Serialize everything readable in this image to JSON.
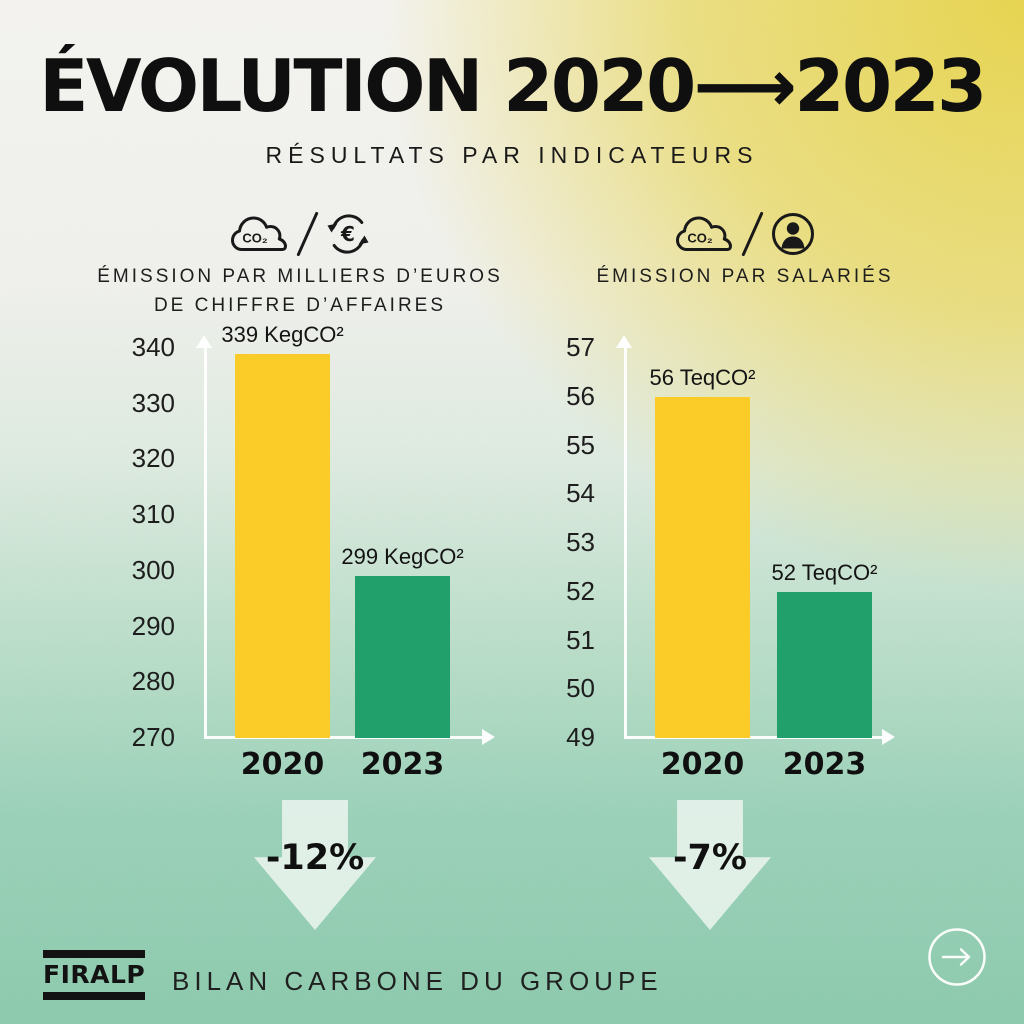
{
  "page": {
    "title": "ÉVOLUTION 2020⟶2023",
    "subtitle": "RÉSULTATS PAR INDICATEURS"
  },
  "footer": {
    "logo_text": "FIRALP",
    "caption": "BILAN CARBONE DU GROUPE"
  },
  "colors": {
    "bar_2020_yellow": "#FBCC27",
    "bar_2023_green": "#21A06C",
    "axis_white": "#FFFFFF",
    "text_black": "#141414",
    "arrow_shape_mint": "#E5F2EA",
    "bg_top_right_yellow": "#E5D248",
    "bg_bottom_teal": "#8AC8AB",
    "bg_top_left_light": "#F3F2EE"
  },
  "chart_data": [
    {
      "type": "bar",
      "title_lines": [
        "ÉMISSION PAR MILLIERS D’EUROS",
        "DE CHIFFRE D’AFFAIRES"
      ],
      "icons": [
        "co2-cloud",
        "euro-cycle"
      ],
      "categories": [
        "2020",
        "2023"
      ],
      "values": [
        339,
        299
      ],
      "bar_labels": [
        "339 KegCO²",
        "299 KegCO²"
      ],
      "bar_colors": [
        "#FBCC27",
        "#21A06C"
      ],
      "ylim": [
        270,
        340
      ],
      "ytick_step": 10,
      "yticks": [
        340,
        330,
        320,
        310,
        300,
        290,
        280,
        270
      ],
      "grid": false,
      "delta_label": "-12%"
    },
    {
      "type": "bar",
      "title_lines": [
        "ÉMISSION PAR SALARIÉS"
      ],
      "icons": [
        "co2-cloud",
        "person"
      ],
      "categories": [
        "2020",
        "2023"
      ],
      "values": [
        56,
        52
      ],
      "bar_labels": [
        "56 TeqCO²",
        "52 TeqCO²"
      ],
      "bar_colors": [
        "#FBCC27",
        "#21A06C"
      ],
      "ylim": [
        49,
        57
      ],
      "ytick_step": 1,
      "yticks": [
        57,
        56,
        55,
        54,
        53,
        52,
        51,
        50,
        49
      ],
      "grid": false,
      "delta_label": "-7%"
    }
  ]
}
